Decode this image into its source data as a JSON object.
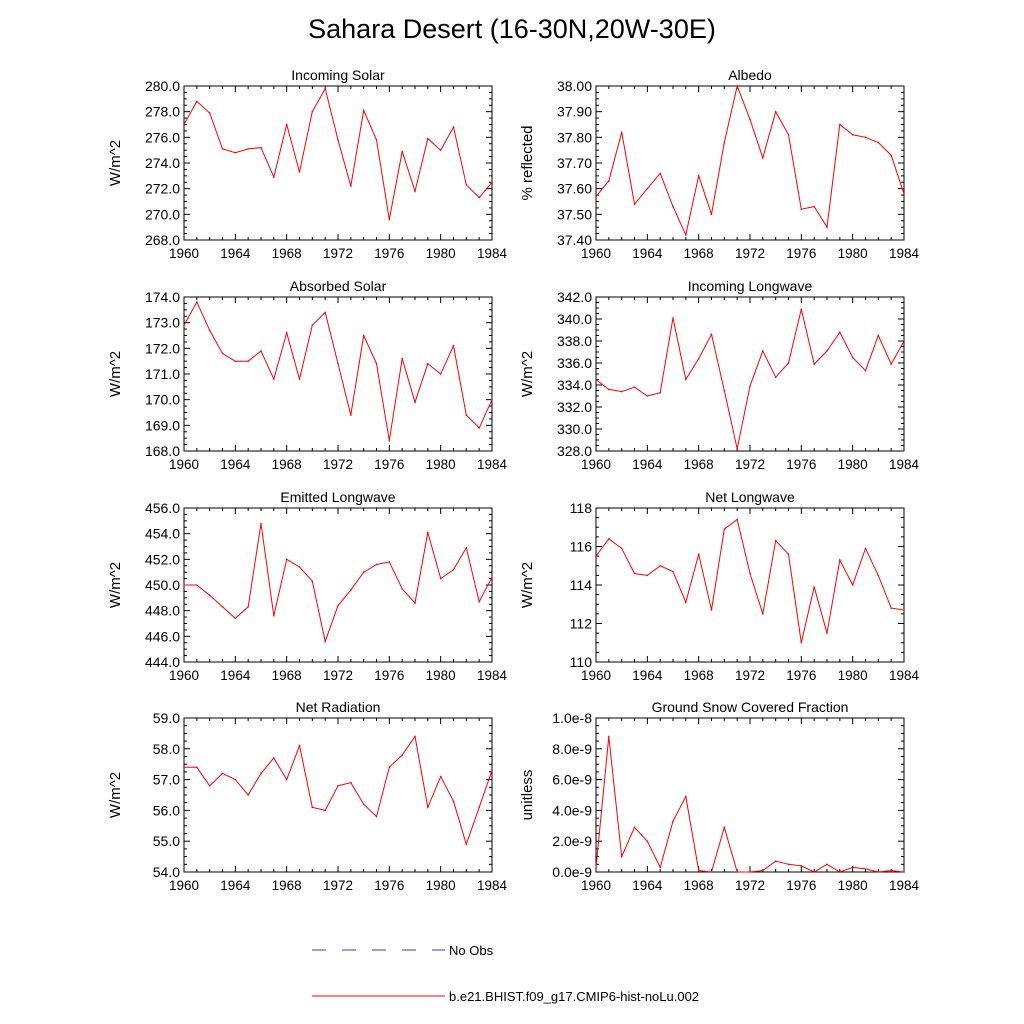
{
  "title": "Sahara Desert (16-30N,20W-30E)",
  "colors": {
    "model": "#ff0000",
    "obs": "#3a3ad0",
    "axis": "#000000"
  },
  "legend": [
    {
      "label": "No Obs",
      "style": "dashed",
      "color": "#3a3ad0"
    },
    {
      "label": "b.e21.BHIST.f09_g17.CMIP6-hist-noLu.002",
      "style": "solid",
      "color": "#ff0000"
    }
  ],
  "chart_data": [
    {
      "type": "line",
      "title": "Incoming Solar",
      "ylabel": "W/m^2",
      "xlim": [
        1960,
        1984
      ],
      "ylim": [
        268,
        280
      ],
      "xticks": [
        "1960",
        "1964",
        "1968",
        "1972",
        "1976",
        "1980",
        "1984"
      ],
      "yticks": [
        "268.0",
        "270.0",
        "272.0",
        "274.0",
        "276.0",
        "278.0",
        "280.0"
      ],
      "series": [
        {
          "x": [
            1960,
            1961,
            1962,
            1963,
            1964,
            1965,
            1966,
            1967,
            1968,
            1969,
            1970,
            1971,
            1972,
            1973,
            1974,
            1975,
            1976,
            1977,
            1978,
            1979,
            1980,
            1981,
            1982,
            1983,
            1984
          ],
          "values": [
            277.0,
            278.8,
            277.9,
            275.1,
            274.8,
            275.1,
            275.2,
            272.9,
            277.0,
            273.3,
            278.0,
            279.8,
            275.8,
            272.2,
            278.1,
            275.8,
            269.6,
            274.9,
            271.8,
            275.9,
            275.0,
            276.8,
            272.3,
            271.3,
            272.5
          ]
        }
      ]
    },
    {
      "type": "line",
      "title": "Albedo",
      "ylabel": "% reflected",
      "xlim": [
        1960,
        1984
      ],
      "ylim": [
        37.4,
        38.0
      ],
      "xticks": [
        "1960",
        "1964",
        "1968",
        "1972",
        "1976",
        "1980",
        "1984"
      ],
      "yticks": [
        "37.40",
        "37.50",
        "37.60",
        "37.70",
        "37.80",
        "37.90",
        "38.00"
      ],
      "series": [
        {
          "x": [
            1960,
            1961,
            1962,
            1963,
            1964,
            1965,
            1966,
            1967,
            1968,
            1969,
            1970,
            1971,
            1972,
            1973,
            1974,
            1975,
            1976,
            1977,
            1978,
            1979,
            1980,
            1981,
            1982,
            1983,
            1984
          ],
          "values": [
            37.57,
            37.63,
            37.82,
            37.54,
            37.6,
            37.66,
            37.53,
            37.42,
            37.65,
            37.5,
            37.78,
            38.0,
            37.87,
            37.72,
            37.9,
            37.81,
            37.52,
            37.53,
            37.45,
            37.85,
            37.81,
            37.8,
            37.78,
            37.73,
            37.58
          ]
        }
      ]
    },
    {
      "type": "line",
      "title": "Absorbed Solar",
      "ylabel": "W/m^2",
      "xlim": [
        1960,
        1984
      ],
      "ylim": [
        168,
        174
      ],
      "xticks": [
        "1960",
        "1964",
        "1968",
        "1972",
        "1976",
        "1980",
        "1984"
      ],
      "yticks": [
        "168.0",
        "169.0",
        "170.0",
        "171.0",
        "172.0",
        "173.0",
        "174.0"
      ],
      "series": [
        {
          "x": [
            1960,
            1961,
            1962,
            1963,
            1964,
            1965,
            1966,
            1967,
            1968,
            1969,
            1970,
            1971,
            1972,
            1973,
            1974,
            1975,
            1976,
            1977,
            1978,
            1979,
            1980,
            1981,
            1982,
            1983,
            1984
          ],
          "values": [
            172.9,
            173.8,
            172.7,
            171.8,
            171.5,
            171.5,
            171.9,
            170.8,
            172.6,
            170.8,
            172.9,
            173.4,
            171.4,
            169.4,
            172.5,
            171.4,
            168.4,
            171.6,
            169.9,
            171.4,
            171.0,
            172.1,
            169.4,
            168.9,
            170.0
          ]
        }
      ]
    },
    {
      "type": "line",
      "title": "Incoming Longwave",
      "ylabel": "W/m^2",
      "xlim": [
        1960,
        1984
      ],
      "ylim": [
        328,
        342
      ],
      "xticks": [
        "1960",
        "1964",
        "1968",
        "1972",
        "1976",
        "1980",
        "1984"
      ],
      "yticks": [
        "328.0",
        "330.0",
        "332.0",
        "334.0",
        "336.0",
        "338.0",
        "340.0",
        "342.0"
      ],
      "series": [
        {
          "x": [
            1960,
            1961,
            1962,
            1963,
            1964,
            1965,
            1966,
            1967,
            1968,
            1969,
            1970,
            1971,
            1972,
            1973,
            1974,
            1975,
            1976,
            1977,
            1978,
            1979,
            1980,
            1981,
            1982,
            1983,
            1984
          ],
          "values": [
            334.5,
            333.6,
            333.4,
            333.8,
            333.0,
            333.3,
            340.1,
            334.5,
            336.4,
            338.6,
            333.5,
            328.2,
            333.9,
            337.1,
            334.7,
            336.0,
            340.9,
            335.9,
            337.1,
            338.8,
            336.5,
            335.3,
            338.5,
            335.9,
            338.0
          ]
        }
      ]
    },
    {
      "type": "line",
      "title": "Emitted Longwave",
      "ylabel": "W/m^2",
      "xlim": [
        1960,
        1984
      ],
      "ylim": [
        444,
        456
      ],
      "xticks": [
        "1960",
        "1964",
        "1968",
        "1972",
        "1976",
        "1980",
        "1984"
      ],
      "yticks": [
        "444.0",
        "446.0",
        "448.0",
        "450.0",
        "452.0",
        "454.0",
        "456.0"
      ],
      "series": [
        {
          "x": [
            1960,
            1961,
            1962,
            1963,
            1964,
            1965,
            1966,
            1967,
            1968,
            1969,
            1970,
            1971,
            1972,
            1973,
            1974,
            1975,
            1976,
            1977,
            1978,
            1979,
            1980,
            1981,
            1982,
            1983,
            1984
          ],
          "values": [
            450.0,
            450.0,
            449.2,
            448.3,
            447.4,
            448.3,
            454.8,
            447.6,
            452.0,
            451.4,
            450.3,
            445.6,
            448.4,
            449.6,
            451.0,
            451.6,
            451.8,
            449.7,
            448.6,
            454.1,
            450.5,
            451.2,
            452.9,
            448.7,
            450.6
          ]
        }
      ]
    },
    {
      "type": "line",
      "title": "Net Longwave",
      "ylabel": "W/m^2",
      "xlim": [
        1960,
        1984
      ],
      "ylim": [
        110,
        118
      ],
      "xticks": [
        "1960",
        "1964",
        "1968",
        "1972",
        "1976",
        "1980",
        "1984"
      ],
      "yticks": [
        "110",
        "112",
        "114",
        "116",
        "118"
      ],
      "series": [
        {
          "x": [
            1960,
            1961,
            1962,
            1963,
            1964,
            1965,
            1966,
            1967,
            1968,
            1969,
            1970,
            1971,
            1972,
            1973,
            1974,
            1975,
            1976,
            1977,
            1978,
            1979,
            1980,
            1981,
            1982,
            1983,
            1984
          ],
          "values": [
            115.5,
            116.4,
            115.9,
            114.6,
            114.5,
            115.0,
            114.7,
            113.1,
            115.6,
            112.7,
            116.9,
            117.4,
            114.6,
            112.5,
            116.3,
            115.6,
            111.0,
            113.9,
            111.5,
            115.3,
            114.0,
            115.9,
            114.5,
            112.8,
            112.7
          ]
        }
      ]
    },
    {
      "type": "line",
      "title": "Net Radiation",
      "ylabel": "W/m^2",
      "xlim": [
        1960,
        1984
      ],
      "ylim": [
        54,
        59
      ],
      "xticks": [
        "1960",
        "1964",
        "1968",
        "1972",
        "1976",
        "1980",
        "1984"
      ],
      "yticks": [
        "54.0",
        "55.0",
        "56.0",
        "57.0",
        "58.0",
        "59.0"
      ],
      "series": [
        {
          "x": [
            1960,
            1961,
            1962,
            1963,
            1964,
            1965,
            1966,
            1967,
            1968,
            1969,
            1970,
            1971,
            1972,
            1973,
            1974,
            1975,
            1976,
            1977,
            1978,
            1979,
            1980,
            1981,
            1982,
            1983,
            1984
          ],
          "values": [
            57.4,
            57.4,
            56.8,
            57.2,
            57.0,
            56.5,
            57.2,
            57.7,
            57.0,
            58.1,
            56.1,
            56.0,
            56.8,
            56.9,
            56.2,
            55.8,
            57.4,
            57.8,
            58.4,
            56.1,
            57.1,
            56.3,
            54.9,
            56.1,
            57.3
          ]
        }
      ]
    },
    {
      "type": "line",
      "title": "Ground Snow Covered Fraction",
      "ylabel": "unitless",
      "xlim": [
        1960,
        1984
      ],
      "ylim": [
        0,
        1e-08
      ],
      "xticks": [
        "1960",
        "1964",
        "1968",
        "1972",
        "1976",
        "1980",
        "1984"
      ],
      "yticks": [
        "0.0e-9",
        "2.0e-9",
        "4.0e-9",
        "6.0e-9",
        "8.0e-9",
        "1.0e-8"
      ],
      "series": [
        {
          "x": [
            1960,
            1961,
            1962,
            1963,
            1964,
            1965,
            1966,
            1967,
            1968,
            1969,
            1970,
            1971,
            1972,
            1973,
            1974,
            1975,
            1976,
            1977,
            1978,
            1979,
            1980,
            1981,
            1982,
            1983,
            1984
          ],
          "values": [
            3e-10,
            8.8e-09,
            1e-09,
            2.9e-09,
            2e-09,
            3e-10,
            3.3e-09,
            4.9e-09,
            1e-10,
            0.0,
            2.9e-09,
            0.0,
            0.0,
            1e-10,
            7e-10,
            5e-10,
            4e-10,
            0.0,
            5e-10,
            0.0,
            3e-10,
            2e-10,
            0.0,
            1e-10,
            0.0
          ]
        }
      ]
    }
  ]
}
